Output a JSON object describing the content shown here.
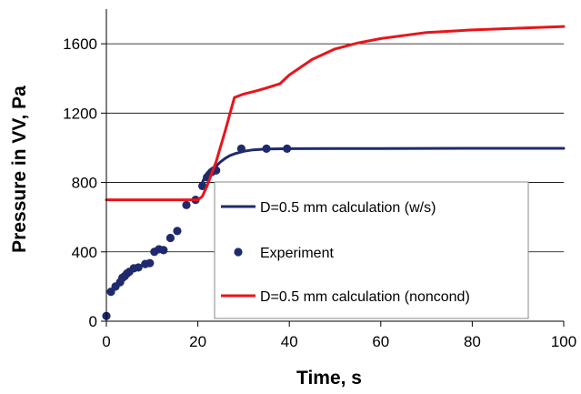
{
  "chart_data": {
    "type": "line",
    "title": "",
    "xlabel": "Time, s",
    "ylabel": "Pressure in VV, Pa",
    "xlim": [
      0,
      100
    ],
    "ylim": [
      0,
      1800
    ],
    "xticks": [
      "0",
      "20",
      "40",
      "60",
      "80",
      "100"
    ],
    "yticks": [
      "0",
      "400",
      "800",
      "1200",
      "1600"
    ],
    "grid": "horizontal",
    "legend_position": "bottom-right",
    "series": [
      {
        "name": "D=0.5 mm calculation (w/s)",
        "style": "line",
        "color": "#1f2a6e",
        "x": [
          21,
          21.5,
          22,
          23,
          24,
          25,
          26,
          27,
          28,
          30,
          32,
          35,
          40,
          50,
          60,
          80,
          100
        ],
        "y": [
          800,
          830,
          855,
          880,
          895,
          920,
          940,
          955,
          965,
          980,
          988,
          993,
          995,
          996,
          996,
          997,
          997
        ]
      },
      {
        "name": "Experiment",
        "style": "markers",
        "color": "#1f2a6e",
        "x": [
          0,
          1,
          2,
          3,
          3.5,
          4,
          4.5,
          5,
          6,
          7,
          8.5,
          9.5,
          10.5,
          11.5,
          12.5,
          14,
          15.5,
          17.5,
          19.5,
          21,
          22,
          23,
          24,
          29.5,
          35,
          39.5
        ],
        "y": [
          30,
          170,
          200,
          225,
          250,
          260,
          275,
          285,
          305,
          310,
          330,
          335,
          400,
          415,
          410,
          480,
          520,
          670,
          700,
          780,
          830,
          860,
          870,
          995,
          995,
          995
        ]
      },
      {
        "name": "D=0.5 mm calculation (noncond)",
        "style": "line",
        "color": "#e8151b",
        "x": [
          0,
          20,
          21,
          22,
          24,
          26,
          28,
          30,
          33,
          35,
          38,
          40,
          45,
          50,
          55,
          60,
          70,
          80,
          90,
          100
        ],
        "y": [
          700,
          700,
          720,
          780,
          920,
          1100,
          1290,
          1310,
          1330,
          1345,
          1370,
          1420,
          1510,
          1570,
          1605,
          1630,
          1665,
          1680,
          1690,
          1700
        ]
      }
    ]
  }
}
